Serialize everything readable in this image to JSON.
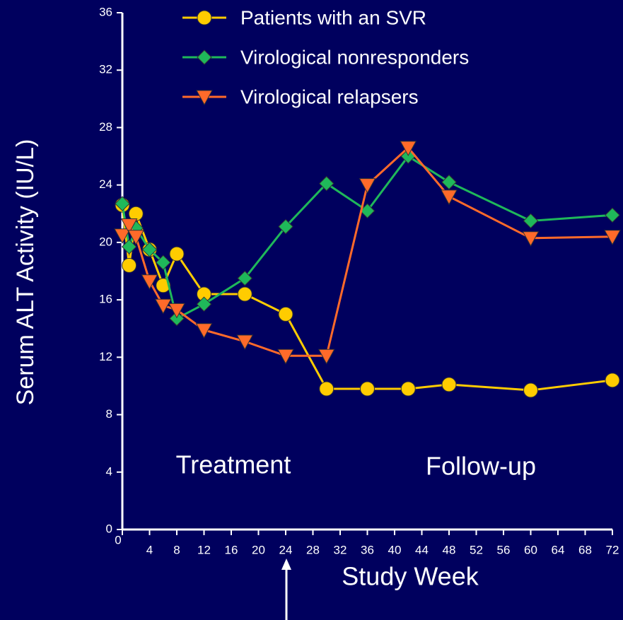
{
  "chart_data": {
    "type": "line",
    "y_label": "Serum ALT Activity (IU/L)",
    "x_label": "Study Week",
    "annotations": [
      "Treatment",
      "Follow-up"
    ],
    "xlim": [
      0,
      72
    ],
    "xticks": [
      0,
      4,
      8,
      12,
      16,
      20,
      24,
      28,
      32,
      36,
      40,
      44,
      48,
      52,
      56,
      60,
      64,
      68,
      72
    ],
    "ylim": [
      0,
      36
    ],
    "yticks": [
      0,
      4,
      8,
      12,
      16,
      20,
      24,
      28,
      32,
      36
    ],
    "legend": "top",
    "series": [
      {
        "name": "Patients with an SVR",
        "color": "#ffcc00",
        "marker": "circle",
        "x": [
          0,
          1,
          2,
          4,
          6,
          8,
          12,
          18,
          24,
          30,
          36,
          42,
          48,
          60,
          72
        ],
        "values": [
          22.6,
          18.4,
          22.0,
          19.5,
          17.0,
          19.2,
          16.4,
          16.4,
          15.0,
          9.8,
          9.8,
          9.8,
          10.1,
          9.7,
          10.4
        ]
      },
      {
        "name": "Virological nonresponders",
        "color": "#1fb85a",
        "marker": "diamond",
        "x": [
          0,
          1,
          2,
          4,
          6,
          8,
          12,
          18,
          24,
          30,
          36,
          42,
          48,
          60,
          72
        ],
        "values": [
          22.7,
          19.7,
          21.0,
          19.5,
          18.6,
          14.7,
          15.7,
          17.5,
          21.1,
          24.1,
          22.2,
          26.0,
          24.2,
          21.5,
          21.9
        ]
      },
      {
        "name": "Virological relapsers",
        "color": "#ff6a2a",
        "marker": "triangle-down",
        "x": [
          0,
          1,
          2,
          4,
          6,
          8,
          12,
          18,
          24,
          30,
          36,
          42,
          48,
          60,
          72
        ],
        "values": [
          20.5,
          21.2,
          20.4,
          17.3,
          15.6,
          15.3,
          13.9,
          13.1,
          12.1,
          12.1,
          24.0,
          26.6,
          23.2,
          20.3,
          20.4
        ]
      }
    ]
  }
}
